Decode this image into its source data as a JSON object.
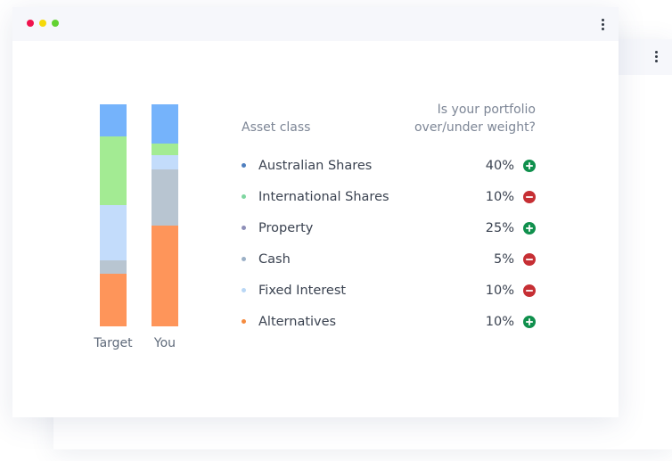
{
  "window": {
    "dots": [
      {
        "name": "close",
        "color": "#f0134d"
      },
      {
        "name": "minimize",
        "color": "#f5d90a"
      },
      {
        "name": "maximize",
        "color": "#63d232"
      }
    ]
  },
  "table": {
    "asset_header": "Asset class",
    "weight_header_line1": "Is your portfolio",
    "weight_header_line2": "over/under weight?",
    "rows": [
      {
        "name": "Australian Shares",
        "pct": "40%",
        "status": "over",
        "bullet": "#4f7fbf"
      },
      {
        "name": "International Shares",
        "pct": "10%",
        "status": "under",
        "bullet": "#7ed6a0"
      },
      {
        "name": "Property",
        "pct": "25%",
        "status": "over",
        "bullet": "#8e8fb8"
      },
      {
        "name": "Cash",
        "pct": "5%",
        "status": "under",
        "bullet": "#9bb0c6"
      },
      {
        "name": "Fixed Interest",
        "pct": "10%",
        "status": "under",
        "bullet": "#b9d7f5"
      },
      {
        "name": "Alternatives",
        "pct": "10%",
        "status": "over",
        "bullet": "#f58b3e"
      }
    ]
  },
  "colors": {
    "over": "#10904d",
    "under": "#c62f34"
  },
  "bars": [
    {
      "label": "Target",
      "segments": [
        {
          "color": "#75b3fb",
          "fraction": 0.145
        },
        {
          "color": "#a3eb93",
          "fraction": 0.31
        },
        {
          "color": "#c3dcfb",
          "fraction": 0.25
        },
        {
          "color": "#b8c5d1",
          "fraction": 0.06
        },
        {
          "color": "#fe955a",
          "fraction": 0.235
        }
      ]
    },
    {
      "label": "You",
      "segments": [
        {
          "color": "#75b3fb",
          "fraction": 0.178
        },
        {
          "color": "#a3eb93",
          "fraction": 0.052
        },
        {
          "color": "#c3dcfb",
          "fraction": 0.064
        },
        {
          "color": "#b8c5d1",
          "fraction": 0.252
        },
        {
          "color": "#fe955a",
          "fraction": 0.454
        }
      ]
    }
  ]
}
